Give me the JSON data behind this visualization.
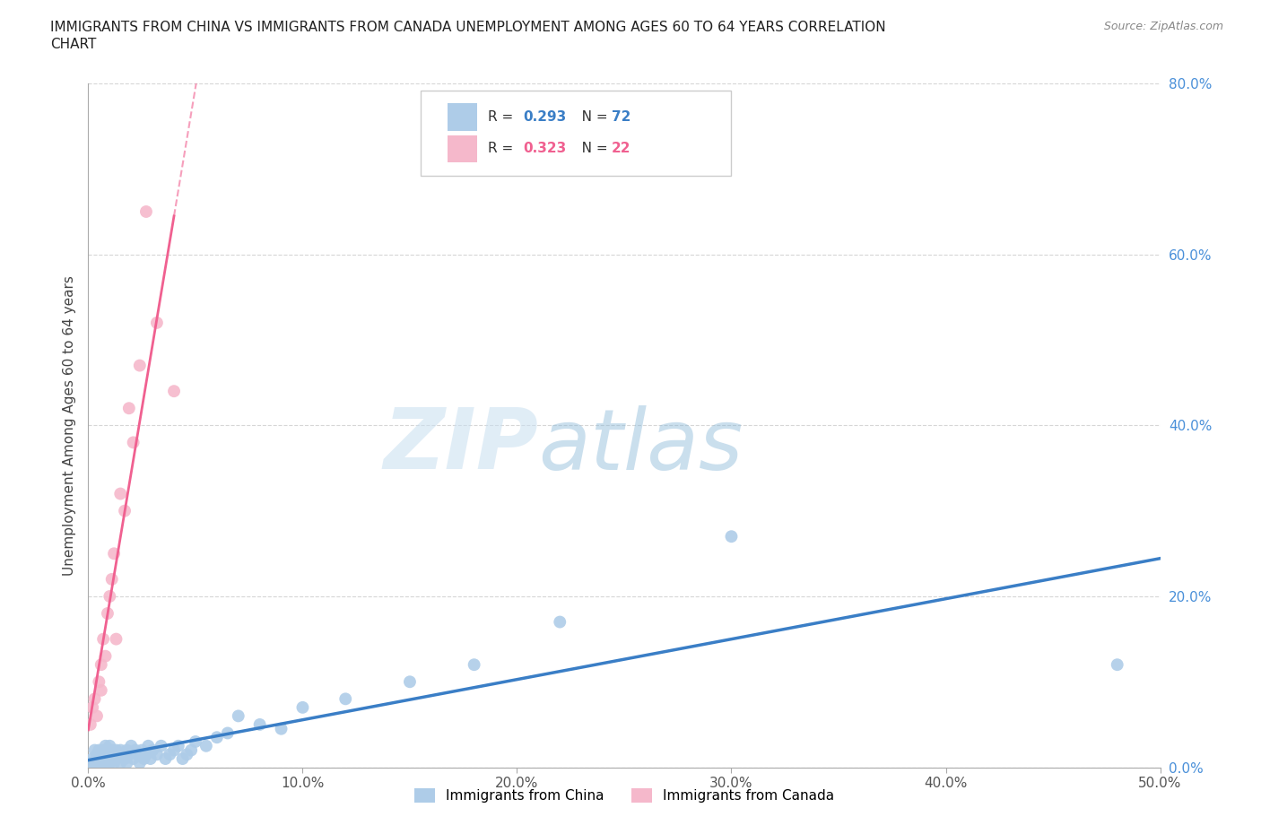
{
  "title_line1": "IMMIGRANTS FROM CHINA VS IMMIGRANTS FROM CANADA UNEMPLOYMENT AMONG AGES 60 TO 64 YEARS CORRELATION",
  "title_line2": "CHART",
  "source": "Source: ZipAtlas.com",
  "ylabel": "Unemployment Among Ages 60 to 64 years",
  "xlim": [
    0.0,
    0.5
  ],
  "ylim": [
    0.0,
    0.8
  ],
  "xticks": [
    0.0,
    0.1,
    0.2,
    0.3,
    0.4,
    0.5
  ],
  "yticks": [
    0.0,
    0.2,
    0.4,
    0.6,
    0.8
  ],
  "xticklabels": [
    "0.0%",
    "10.0%",
    "20.0%",
    "30.0%",
    "40.0%",
    "50.0%"
  ],
  "yticklabels": [
    "0.0%",
    "20.0%",
    "40.0%",
    "60.0%",
    "80.0%"
  ],
  "watermark_zip": "ZIP",
  "watermark_atlas": "atlas",
  "china_color": "#aecce8",
  "canada_color": "#f5b8cb",
  "china_line_color": "#3a7ec6",
  "canada_line_color": "#f06090",
  "ytick_color": "#4a90d9",
  "china_R": 0.293,
  "china_N": 72,
  "canada_R": 0.323,
  "canada_N": 22,
  "china_x": [
    0.001,
    0.002,
    0.003,
    0.003,
    0.004,
    0.004,
    0.004,
    0.005,
    0.005,
    0.006,
    0.006,
    0.006,
    0.007,
    0.007,
    0.007,
    0.007,
    0.008,
    0.008,
    0.008,
    0.009,
    0.009,
    0.01,
    0.01,
    0.01,
    0.011,
    0.011,
    0.012,
    0.012,
    0.013,
    0.013,
    0.014,
    0.015,
    0.015,
    0.016,
    0.017,
    0.018,
    0.018,
    0.019,
    0.02,
    0.021,
    0.022,
    0.023,
    0.024,
    0.025,
    0.026,
    0.027,
    0.028,
    0.029,
    0.03,
    0.032,
    0.034,
    0.036,
    0.038,
    0.04,
    0.042,
    0.044,
    0.046,
    0.048,
    0.05,
    0.055,
    0.06,
    0.065,
    0.07,
    0.08,
    0.09,
    0.1,
    0.12,
    0.15,
    0.18,
    0.22,
    0.3,
    0.48
  ],
  "china_y": [
    0.005,
    0.01,
    0.005,
    0.02,
    0.01,
    0.005,
    0.015,
    0.02,
    0.005,
    0.01,
    0.015,
    0.005,
    0.02,
    0.01,
    0.005,
    0.015,
    0.025,
    0.01,
    0.005,
    0.02,
    0.01,
    0.025,
    0.015,
    0.005,
    0.02,
    0.01,
    0.015,
    0.005,
    0.02,
    0.01,
    0.015,
    0.02,
    0.005,
    0.015,
    0.01,
    0.02,
    0.005,
    0.015,
    0.025,
    0.01,
    0.02,
    0.015,
    0.005,
    0.02,
    0.01,
    0.015,
    0.025,
    0.01,
    0.02,
    0.015,
    0.025,
    0.01,
    0.015,
    0.02,
    0.025,
    0.01,
    0.015,
    0.02,
    0.03,
    0.025,
    0.035,
    0.04,
    0.06,
    0.05,
    0.045,
    0.07,
    0.08,
    0.1,
    0.12,
    0.17,
    0.27,
    0.12
  ],
  "canada_x": [
    0.001,
    0.002,
    0.003,
    0.004,
    0.005,
    0.006,
    0.006,
    0.007,
    0.008,
    0.009,
    0.01,
    0.011,
    0.012,
    0.013,
    0.015,
    0.017,
    0.019,
    0.021,
    0.024,
    0.027,
    0.032,
    0.04
  ],
  "canada_y": [
    0.05,
    0.07,
    0.08,
    0.06,
    0.1,
    0.12,
    0.09,
    0.15,
    0.13,
    0.18,
    0.2,
    0.22,
    0.25,
    0.15,
    0.32,
    0.3,
    0.42,
    0.38,
    0.47,
    0.65,
    0.52,
    0.44
  ],
  "legend_label_china": "Immigrants from China",
  "legend_label_canada": "Immigrants from Canada"
}
